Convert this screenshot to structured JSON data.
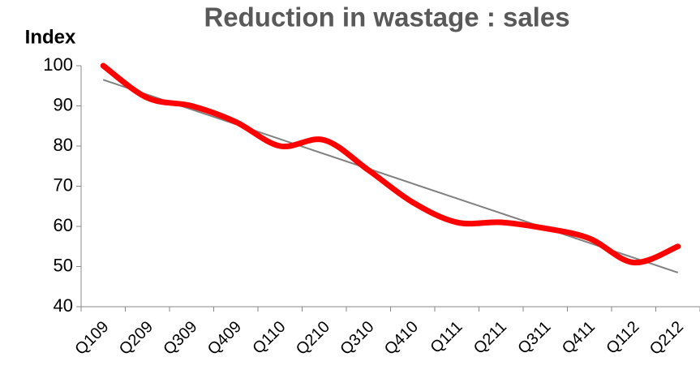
{
  "chart_data": {
    "type": "line",
    "title": "Reduction in wastage : sales",
    "y_label": "Index",
    "categories": [
      "Q109",
      "Q209",
      "Q309",
      "Q409",
      "Q110",
      "Q210",
      "Q310",
      "Q410",
      "Q111",
      "Q211",
      "Q311",
      "Q411",
      "Q112",
      "Q212"
    ],
    "series": [
      {
        "color": "#ff0000",
        "values": [
          100,
          92,
          90,
          86,
          80,
          81.5,
          74,
          66,
          61,
          61,
          59.5,
          57,
          51,
          55
        ]
      }
    ],
    "trendline": {
      "color": "#808080",
      "values": [
        96.5,
        48.5
      ]
    },
    "ylim": [
      40,
      100
    ],
    "yticks": [
      40,
      50,
      60,
      70,
      80,
      90,
      100
    ],
    "smooth": true
  }
}
